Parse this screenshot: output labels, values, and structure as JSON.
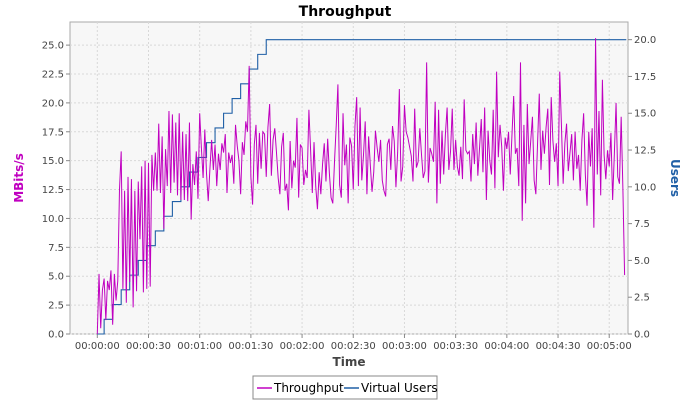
{
  "chart_data": {
    "type": "line",
    "title": "Throughput",
    "xlabel": "Time",
    "ylabel_left": "MBits/s",
    "ylabel_right": "Users",
    "x_ticks": [
      "00:00:00",
      "00:00:30",
      "00:01:00",
      "00:01:30",
      "00:02:00",
      "00:02:30",
      "00:03:00",
      "00:03:30",
      "00:04:00",
      "00:04:30",
      "00:05:00"
    ],
    "y_left_ticks": [
      "0.0",
      "2.5",
      "5.0",
      "7.5",
      "10.0",
      "12.5",
      "15.0",
      "17.5",
      "20.0",
      "22.5",
      "25.0"
    ],
    "y_right_ticks": [
      "0.0",
      "2.5",
      "5.0",
      "7.5",
      "10.0",
      "12.5",
      "15.0",
      "17.5",
      "20.0"
    ],
    "ylim_left": [
      0,
      27.0
    ],
    "ylim_right": [
      0,
      21.2
    ],
    "xlim_seconds": [
      -16,
      311
    ],
    "grid": true,
    "legend_position": "bottom",
    "colors": {
      "throughput": "#c000c0",
      "users": "#1f5fa6",
      "left_axis_label": "#c000c0",
      "right_axis_label": "#1f5fa6",
      "plot_bg": "#f7f7f7"
    },
    "series": [
      {
        "name": "Throughput",
        "axis": "left",
        "x_start_seconds": 0,
        "x_step_seconds": 1,
        "values": [
          0.0,
          5.2,
          0.5,
          3.8,
          4.8,
          1.2,
          4.6,
          3.8,
          5.5,
          0.8,
          5.2,
          2.9,
          4.6,
          12.5,
          15.8,
          3.9,
          12.4,
          2.7,
          13.6,
          4.5,
          13.4,
          2.3,
          12.4,
          3.7,
          13.2,
          8.2,
          14.5,
          3.6,
          15.0,
          3.9,
          14.8,
          4.1,
          15.5,
          12.4,
          15.7,
          12.4,
          18.2,
          12.2,
          17.1,
          9.1,
          16.0,
          12.8,
          19.3,
          12.2,
          19.0,
          13.1,
          18.3,
          12.0,
          19.1,
          11.6,
          17.5,
          11.6,
          17.3,
          11.5,
          18.3,
          9.9,
          14.7,
          12.9,
          15.8,
          11.7,
          19.1,
          16.1,
          13.5,
          17.7,
          13.9,
          11.5,
          14.3,
          16.8,
          14.2,
          16.4,
          12.8,
          15.6,
          14.2,
          16.5,
          15.7,
          17.3,
          12.2,
          15.7,
          14.8,
          15.5,
          13.0,
          18.1,
          16.3,
          15.0,
          12.1,
          16.6,
          15.5,
          18.4,
          17.5,
          23.2,
          13.6,
          11.2,
          16.4,
          18.1,
          13.0,
          17.4,
          14.3,
          17.5,
          17.3,
          13.6,
          17.9,
          19.9,
          13.7,
          16.8,
          17.8,
          15.7,
          13.5,
          12.1,
          16.2,
          17.4,
          12.4,
          13.0,
          10.7,
          16.7,
          12.6,
          15.0,
          14.4,
          18.7,
          11.8,
          16.4,
          16.1,
          12.9,
          14.2,
          13.5,
          19.4,
          15.9,
          12.2,
          16.6,
          12.8,
          10.8,
          14.0,
          12.1,
          14.7,
          16.5,
          13.2,
          16.9,
          13.9,
          11.8,
          11.3,
          14.9,
          18.0,
          21.6,
          12.9,
          11.8,
          19.1,
          14.6,
          16.4,
          11.3,
          17.0,
          16.3,
          12.5,
          18.0,
          20.5,
          12.8,
          19.6,
          13.3,
          15.5,
          18.4,
          12.1,
          17.1,
          14.6,
          12.3,
          14.0,
          17.6,
          16.1,
          14.9,
          16.8,
          13.3,
          12.4,
          11.9,
          16.4,
          16.9,
          14.2,
          18.0,
          16.7,
          12.7,
          15.7,
          21.2,
          13.2,
          14.5,
          19.8,
          17.5,
          17.0,
          16.2,
          15.4,
          13.2,
          19.5,
          14.4,
          14.9,
          17.8,
          15.5,
          13.5,
          14.1,
          23.5,
          13.1,
          16.1,
          15.6,
          14.9,
          20.1,
          11.3,
          19.4,
          13.0,
          17.6,
          13.8,
          17.3,
          19.6,
          14.2,
          15.8,
          19.5,
          14.2,
          16.8,
          14.5,
          13.7,
          16.2,
          13.4,
          20.3,
          15.9,
          15.6,
          15.8,
          13.2,
          17.3,
          14.7,
          18.3,
          13.7,
          16.1,
          18.6,
          14.0,
          19.6,
          11.6,
          17.6,
          15.0,
          13.8,
          19.4,
          12.6,
          22.7,
          15.3,
          18.1,
          16.2,
          12.4,
          17.0,
          16.0,
          17.5,
          13.8,
          17.2,
          20.6,
          15.6,
          16.1,
          12.8,
          23.5,
          9.8,
          18.1,
          11.3,
          19.9,
          14.7,
          16.7,
          18.8,
          13.3,
          12.1,
          16.5,
          20.8,
          14.2,
          17.6,
          15.6,
          17.9,
          19.5,
          12.9,
          20.5,
          16.7,
          14.9,
          16.5,
          12.8,
          22.7,
          18.0,
          13.0,
          16.5,
          18.2,
          14.1,
          15.7,
          17.3,
          13.3,
          17.5,
          14.3,
          15.5,
          12.4,
          16.8,
          19.1,
          13.8,
          11.1,
          17.5,
          14.5,
          17.8,
          9.2,
          25.6,
          13.8,
          19.3,
          12.0,
          22.0,
          15.5,
          13.4,
          15.9,
          14.5,
          17.4,
          11.6,
          15.6,
          20.0,
          13.6,
          13.0,
          18.8,
          12.6,
          5.1
        ]
      },
      {
        "name": "Virtual Users",
        "axis": "right",
        "x_start_seconds": 0,
        "x_step_seconds": 1,
        "values": [
          0,
          0,
          0,
          0,
          1,
          1,
          1,
          1,
          1,
          2,
          2,
          2,
          2,
          2,
          3,
          3,
          3,
          3,
          3,
          4,
          4,
          4,
          4,
          4,
          5,
          5,
          5,
          5,
          5,
          6,
          6,
          6,
          6,
          6,
          7,
          7,
          7,
          7,
          7,
          8,
          8,
          8,
          8,
          8,
          9,
          9,
          9,
          9,
          9,
          10,
          10,
          10,
          10,
          10,
          11,
          11,
          11,
          11,
          11,
          12,
          12,
          12,
          12,
          12,
          13,
          13,
          13,
          13,
          13,
          14,
          14,
          14,
          14,
          14,
          15,
          15,
          15,
          15,
          15,
          16,
          16,
          16,
          16,
          16,
          17,
          17,
          17,
          17,
          17,
          18,
          18,
          18,
          18,
          18,
          19,
          19,
          19,
          19,
          19,
          20,
          20,
          20,
          20,
          20,
          20,
          20,
          20,
          20,
          20,
          20,
          20,
          20,
          20,
          20,
          20,
          20,
          20,
          20,
          20,
          20,
          20,
          20,
          20,
          20,
          20,
          20,
          20,
          20,
          20,
          20,
          20,
          20,
          20,
          20,
          20,
          20,
          20,
          20,
          20,
          20,
          20,
          20,
          20,
          20,
          20,
          20,
          20,
          20,
          20,
          20,
          20,
          20,
          20,
          20,
          20,
          20,
          20,
          20,
          20,
          20,
          20,
          20,
          20,
          20,
          20,
          20,
          20,
          20,
          20,
          20,
          20,
          20,
          20,
          20,
          20,
          20,
          20,
          20,
          20,
          20,
          20,
          20,
          20,
          20,
          20,
          20,
          20,
          20,
          20,
          20,
          20,
          20,
          20,
          20,
          20,
          20,
          20,
          20,
          20,
          20,
          20,
          20,
          20,
          20,
          20,
          20,
          20,
          20,
          20,
          20,
          20,
          20,
          20,
          20,
          20,
          20,
          20,
          20,
          20,
          20,
          20,
          20,
          20,
          20,
          20,
          20,
          20,
          20,
          20,
          20,
          20,
          20,
          20,
          20,
          20,
          20,
          20,
          20,
          20,
          20,
          20,
          20,
          20,
          20,
          20,
          20,
          20,
          20,
          20,
          20,
          20,
          20,
          20,
          20,
          20,
          20,
          20,
          20,
          20,
          20,
          20,
          20,
          20,
          20,
          20,
          20,
          20,
          20,
          20,
          20,
          20,
          20,
          20,
          20,
          20,
          20,
          20,
          20,
          20,
          20,
          20,
          20,
          20,
          20,
          20,
          20,
          20,
          20,
          20,
          20,
          20,
          20,
          20,
          20,
          20,
          20,
          20,
          20,
          20,
          20,
          20,
          20,
          20,
          20,
          20,
          20,
          20,
          20,
          20,
          20
        ]
      }
    ]
  }
}
